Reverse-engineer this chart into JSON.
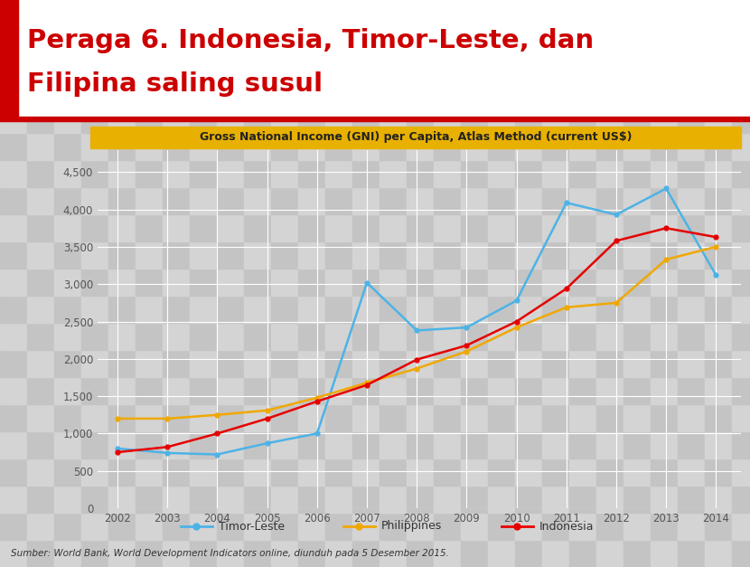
{
  "title_line1": "Peraga 6. Indonesia, Timor-Leste, dan",
  "title_line2": "Filipina saling susul",
  "title_color": "#cc0000",
  "subtitle": "Gross National Income (GNI) per Capita, Atlas Method (current US$)",
  "subtitle_bg": "#e8b000",
  "subtitle_text_color": "#222222",
  "footer": "Sumber: World Bank, World Development Indicators online, diunduh pada 5 Desember 2015.",
  "years": [
    2002,
    2003,
    2004,
    2005,
    2006,
    2007,
    2008,
    2009,
    2010,
    2011,
    2012,
    2013,
    2014
  ],
  "timor_leste": [
    800,
    740,
    720,
    870,
    1000,
    3020,
    2380,
    2420,
    2780,
    4090,
    3930,
    4280,
    3120
  ],
  "philippines": [
    1200,
    1200,
    1250,
    1310,
    1480,
    1680,
    1870,
    2100,
    2420,
    2690,
    2750,
    3330,
    3500
  ],
  "indonesia": [
    750,
    820,
    1000,
    1200,
    1430,
    1650,
    1990,
    2180,
    2500,
    2940,
    3580,
    3750,
    3630
  ],
  "timor_color": "#4db3e6",
  "philippines_color": "#f0a800",
  "indonesia_color": "#e60000",
  "ylim": [
    0,
    4800
  ],
  "yticks": [
    0,
    500,
    1000,
    1500,
    2000,
    2500,
    3000,
    3500,
    4000,
    4500
  ],
  "check_light": "#d4d4d4",
  "check_dark": "#c4c4c4",
  "red_color": "#cc0000",
  "white": "#ffffff"
}
